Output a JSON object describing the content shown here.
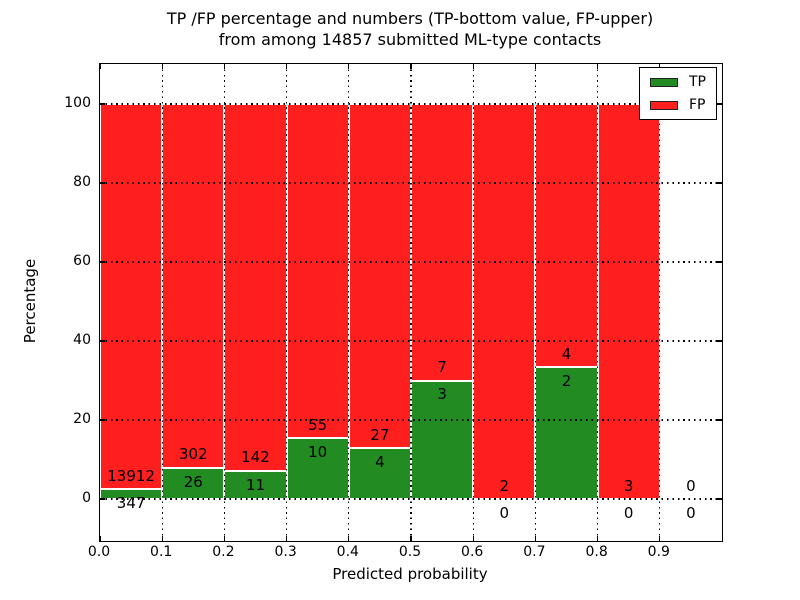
{
  "title": {
    "line1": "TP /FP percentage and numbers (TP-bottom value, FP-upper)",
    "line2": "from among 14857 submitted ML-type contacts"
  },
  "axes": {
    "xlabel": "Predicted probability",
    "ylabel": "Percentage",
    "x_tick_labels": [
      "0.0",
      "0.1",
      "0.2",
      "0.3",
      "0.4",
      "0.5",
      "0.6",
      "0.7",
      "0.8",
      "0.9"
    ],
    "y_tick_labels": [
      "0",
      "20",
      "40",
      "60",
      "80",
      "100"
    ]
  },
  "legend": {
    "items": [
      {
        "label": "TP",
        "color": "#228b22"
      },
      {
        "label": "FP",
        "color": "#ff1f1f"
      }
    ]
  },
  "chart_data": {
    "type": "bar",
    "stacked": true,
    "normalized": "percent of each bin total",
    "title": "TP /FP percentage and numbers (TP-bottom value, FP-upper) from among 14857 submitted ML-type contacts",
    "xlabel": "Predicted probability",
    "ylabel": "Percentage",
    "total_contacts": 14857,
    "bin_edges": [
      0.0,
      0.1,
      0.2,
      0.3,
      0.4,
      0.5,
      0.6,
      0.7,
      0.8,
      0.9,
      1.0
    ],
    "x_ticks": [
      0.0,
      0.1,
      0.2,
      0.3,
      0.4,
      0.5,
      0.6,
      0.7,
      0.8,
      0.9
    ],
    "y_ticks": [
      0,
      20,
      40,
      60,
      80,
      100
    ],
    "xlim": [
      0,
      1.0
    ],
    "ylim": [
      -10.6,
      110.1
    ],
    "grid": "dotted black, drawn above bars",
    "legend_position": "upper right",
    "bar_edge_color": "#ffffff",
    "series": [
      {
        "name": "TP",
        "color": "#228b22",
        "counts": [
          347,
          26,
          11,
          10,
          4,
          3,
          0,
          2,
          0,
          0
        ]
      },
      {
        "name": "FP",
        "color": "#ff1f1f",
        "counts": [
          13912,
          302,
          142,
          55,
          27,
          7,
          2,
          4,
          3,
          0
        ]
      }
    ],
    "tp_percent_per_bin": [
      2.43,
      7.93,
      7.19,
      15.38,
      12.9,
      30.0,
      0.0,
      33.33,
      0.0,
      null
    ],
    "label_offsets_percent": {
      "fp_above_boundary": 3.4,
      "tp_below_boundary": 3.5
    }
  }
}
